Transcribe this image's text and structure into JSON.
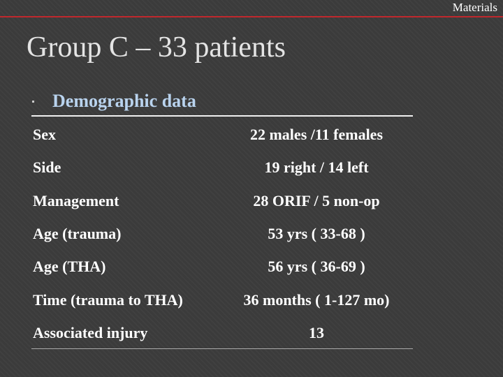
{
  "header": {
    "section": "Materials"
  },
  "title": "Group C – 33 patients",
  "bullet": "Demographic data",
  "table": {
    "rows": [
      [
        "Sex",
        "22 males /11 females"
      ],
      [
        "Side",
        "19 right / 14 left"
      ],
      [
        "Management",
        "28 ORIF / 5 non-op"
      ],
      [
        "Age (trauma)",
        "53 yrs ( 33-68 )"
      ],
      [
        "Age (THA)",
        "56 yrs ( 36-69 )"
      ],
      [
        "Time (trauma to THA)",
        "36 months ( 1-127 mo)"
      ],
      [
        "Associated injury",
        "13"
      ]
    ]
  }
}
